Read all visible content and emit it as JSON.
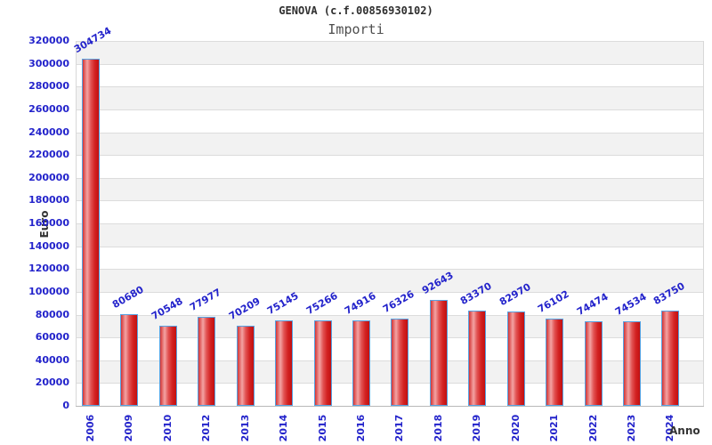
{
  "header": {
    "title": "GENOVA (c.f.00856930102)",
    "subtitle": "Importi"
  },
  "chart_data": {
    "type": "bar",
    "title": "GENOVA (c.f.00856930102)",
    "subtitle": "Importi",
    "xlabel": "Anno",
    "ylabel": "Euro",
    "categories": [
      "2006",
      "2009",
      "2010",
      "2012",
      "2013",
      "2014",
      "2015",
      "2016",
      "2017",
      "2018",
      "2019",
      "2020",
      "2021",
      "2022",
      "2023",
      "2024"
    ],
    "values": [
      304734,
      80680,
      70548,
      77977,
      70209,
      75145,
      75266,
      74916,
      76326,
      92643,
      83370,
      82970,
      76102,
      74474,
      74534,
      83750
    ],
    "ylim": [
      0,
      320000
    ],
    "ytick_step": 20000,
    "yticks": [
      0,
      20000,
      40000,
      60000,
      80000,
      100000,
      120000,
      140000,
      160000,
      180000,
      200000,
      220000,
      240000,
      260000,
      280000,
      300000,
      320000
    ],
    "grid": "horizontal gridlines with alternating gray/white bands",
    "legend": "none",
    "bar_labels_rotation_deg": -30,
    "xtick_rotation_deg": -90,
    "colors": {
      "label_blue": "#2323cb",
      "bar_fill_dark": "#c21010",
      "bar_fill_highlight": "#f3a4a4",
      "bar_border": "#56a2e2",
      "band_gray": "#f2f2f2",
      "band_white": "#ffffff",
      "grid_line": "#dcdcdc",
      "axis_line": "#b9b9b9",
      "title_color": "#2e2e2e",
      "subtitle_color": "#4f4f4f",
      "axis_title_color": "#333333"
    }
  }
}
